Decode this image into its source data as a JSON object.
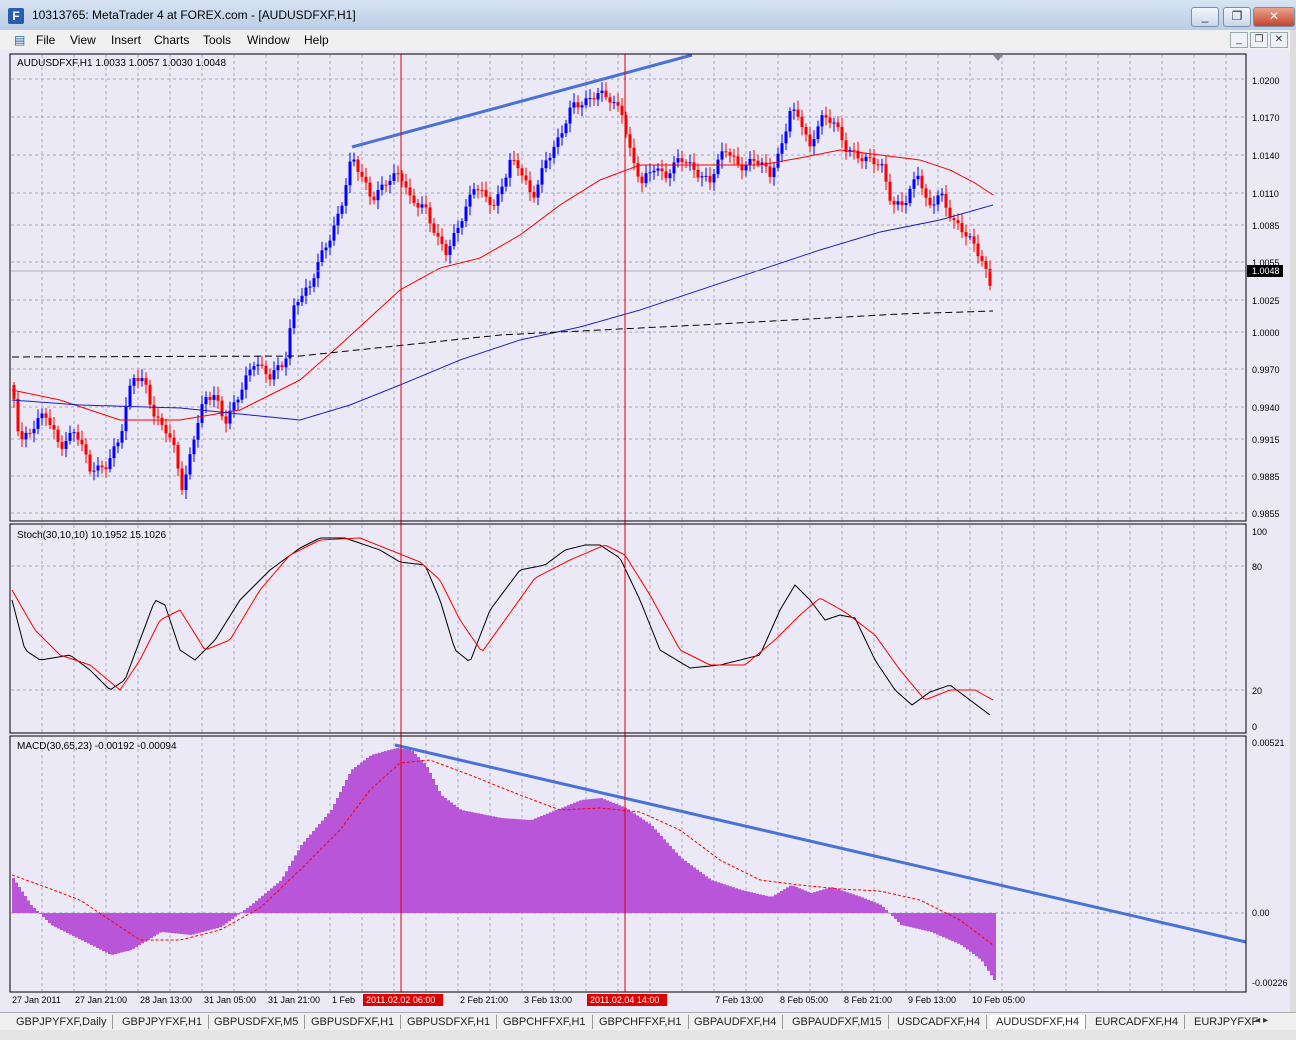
{
  "window": {
    "title": "10313765: MetaTrader 4 at FOREX.com - [AUDUSDFXF,H1]",
    "app_icon": "metatrader-icon",
    "minimize": "_",
    "restore": "❐",
    "close": "✕"
  },
  "menu": [
    "File",
    "View",
    "Insert",
    "Charts",
    "Tools",
    "Window",
    "Help"
  ],
  "main_chart": {
    "header": "AUDUSDFXF,H1  1.0033 1.0057 1.0030 1.0048",
    "price_labels": [
      "1.0200",
      "1.0170",
      "1.0140",
      "1.0110",
      "1.0085",
      "1.0055",
      "1.0025",
      "1.0000",
      "0.9970",
      "0.9940",
      "0.9915",
      "0.9885",
      "0.9855"
    ],
    "current_price": "1.0048"
  },
  "stoch": {
    "header": "Stoch(30,10,10) 10.1952 15.1026",
    "levels": [
      "100",
      "80",
      "20",
      "0"
    ]
  },
  "macd": {
    "header": "MACD(30,65,23) -0.00192 -0.00094",
    "levels": [
      "0.00521",
      "0.00",
      "-0.00226"
    ]
  },
  "time_axis": [
    "27 Jan 2011",
    "27 Jan 21:00",
    "28 Jan 13:00",
    "31 Jan 05:00",
    "31 Jan 21:00",
    "1 Feb",
    "2 Feb 21:00",
    "3 Feb 13:00",
    "7 Feb 13:00",
    "8 Feb 05:00",
    "8 Feb 21:00",
    "9 Feb 13:00",
    "10 Feb 05:00"
  ],
  "markers": [
    "2011.02.02 06:00",
    "2011.02.04 14:00"
  ],
  "tabs": [
    "GBPJPYFXF,Daily",
    "GBPJPYFXF,H1",
    "GBPUSDFXF,M5",
    "GBPUSDFXF,H1",
    "GBPUSDFXF,H1",
    "GBPCHFFXF,H1",
    "GBPCHFFXF,H1",
    "GBPAUDFXF,H4",
    "GBPAUDFXF,M15",
    "USDCADFXF,H4",
    "AUDUSDFXF,H4",
    "EURCADFXF,H4",
    "EURJPYFXF"
  ],
  "tab_nav": "◂ ▸",
  "colors": {
    "bg": "#ebe9f5",
    "bull": "#0000ff",
    "bear": "#ff0000",
    "macd_hist": "#b955d8",
    "trend": "#4a72d6",
    "marker": "#e00000"
  }
}
